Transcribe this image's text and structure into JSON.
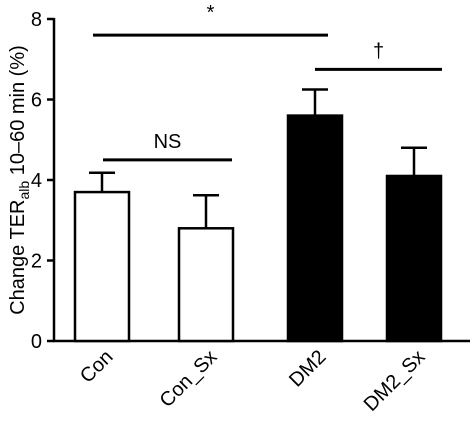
{
  "chart_data": {
    "type": "bar",
    "categories": [
      "Con",
      "Con_Sx",
      "DM2",
      "DM2_Sx"
    ],
    "values": [
      3.7,
      2.8,
      5.6,
      4.1
    ],
    "errors": [
      0.48,
      0.82,
      0.65,
      0.7
    ],
    "fills": [
      "#ffffff",
      "#ffffff",
      "#000000",
      "#000000"
    ],
    "ylabel_main": "Change TER",
    "ylabel_sub": "alb",
    "ylabel_rest": " 10–60 min (%)",
    "ylim": [
      0,
      8
    ],
    "yticks": [
      "0",
      "2",
      "4",
      "6",
      "8"
    ],
    "grid": false,
    "significance": [
      {
        "label": "*",
        "from": 0,
        "to": 2,
        "level": 7.6
      },
      {
        "label": "†",
        "from": 2,
        "to": 3,
        "level": 6.75
      },
      {
        "label": "NS",
        "from": 0,
        "to": 1,
        "level": 4.5
      }
    ]
  }
}
